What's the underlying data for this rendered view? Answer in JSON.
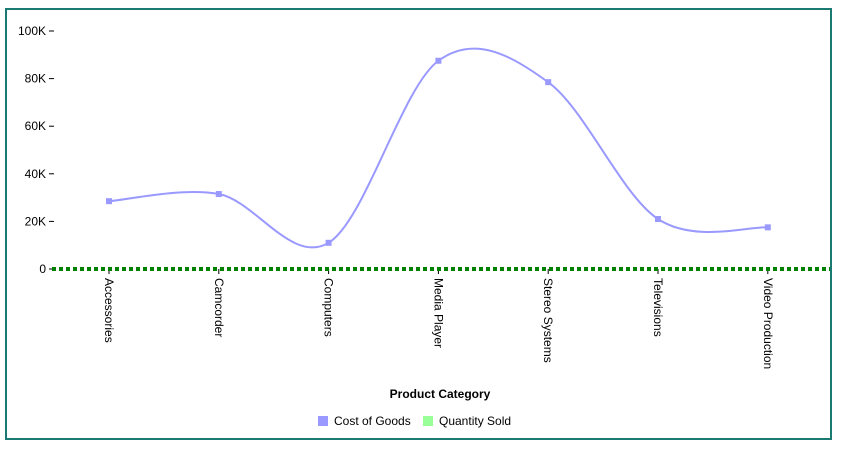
{
  "chart_data": {
    "type": "line",
    "categories": [
      "Accessories",
      "Camcorder",
      "Computers",
      "Media Player",
      "Stereo Systems",
      "Televisions",
      "Video Production"
    ],
    "series": [
      {
        "name": "Cost of Goods",
        "values": [
          28500,
          31500,
          11000,
          87500,
          78500,
          21000,
          17500
        ],
        "color": "#9999ff"
      },
      {
        "name": "Quantity Sold",
        "values": [
          0,
          0,
          0,
          0,
          0,
          0,
          0
        ],
        "color": "#008000"
      }
    ],
    "legend_colors": [
      "#9999ff",
      "#99ff99"
    ],
    "xlabel": "Product Category",
    "ylabel": "",
    "ylim": [
      0,
      100000
    ],
    "yticks": [
      0,
      20000,
      40000,
      60000,
      80000,
      100000
    ],
    "ytick_labels": [
      "0",
      "20K",
      "40K",
      "60K",
      "80K",
      "100K"
    ],
    "legend_position": "bottom-center",
    "grid": false
  },
  "border_color": "#1a7a72"
}
